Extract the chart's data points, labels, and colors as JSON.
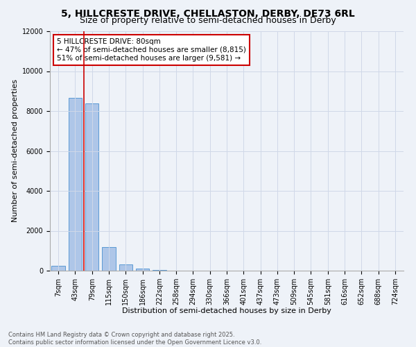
{
  "title_line1": "5, HILLCRESTE DRIVE, CHELLASTON, DERBY, DE73 6RL",
  "title_line2": "Size of property relative to semi-detached houses in Derby",
  "xlabel": "Distribution of semi-detached houses by size in Derby",
  "ylabel": "Number of semi-detached properties",
  "categories": [
    "7sqm",
    "43sqm",
    "79sqm",
    "115sqm",
    "150sqm",
    "186sqm",
    "222sqm",
    "258sqm",
    "294sqm",
    "330sqm",
    "366sqm",
    "401sqm",
    "437sqm",
    "473sqm",
    "509sqm",
    "545sqm",
    "581sqm",
    "616sqm",
    "652sqm",
    "688sqm",
    "724sqm"
  ],
  "values": [
    230,
    8650,
    8380,
    1200,
    320,
    120,
    50,
    0,
    0,
    0,
    0,
    0,
    0,
    0,
    0,
    0,
    0,
    0,
    0,
    0,
    0
  ],
  "bar_color": "#aec6e8",
  "bar_edge_color": "#5b9bd5",
  "vline_x": 1.5,
  "vline_color": "#cc0000",
  "annotation_text": "5 HILLCRESTE DRIVE: 80sqm\n← 47% of semi-detached houses are smaller (8,815)\n51% of semi-detached houses are larger (9,581) →",
  "annotation_box_color": "#ffffff",
  "annotation_box_edge_color": "#cc0000",
  "annotation_fontsize": 7.5,
  "ylim": [
    0,
    12000
  ],
  "yticks": [
    0,
    2000,
    4000,
    6000,
    8000,
    10000,
    12000
  ],
  "grid_color": "#d0d8e8",
  "background_color": "#eef2f8",
  "footer_line1": "Contains HM Land Registry data © Crown copyright and database right 2025.",
  "footer_line2": "Contains public sector information licensed under the Open Government Licence v3.0.",
  "title_fontsize": 10,
  "subtitle_fontsize": 9,
  "axis_label_fontsize": 8,
  "tick_fontsize": 7,
  "footer_fontsize": 6
}
